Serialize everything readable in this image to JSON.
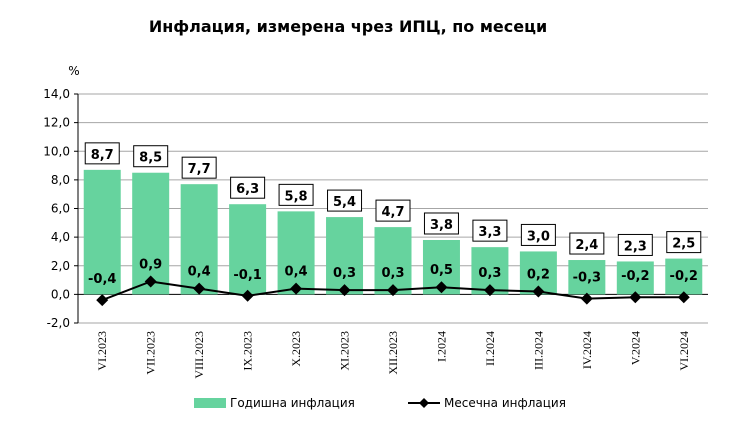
{
  "chart_data": {
    "type": "bar+line",
    "title": "Инфлация, измерена чрез ИПЦ, по месеци",
    "ylabel": "%",
    "ylim": [
      -2,
      14
    ],
    "yticks": [
      "-2,0",
      "0,0",
      "2,0",
      "4,0",
      "6,0",
      "8,0",
      "10,0",
      "12,0",
      "14,0"
    ],
    "categories": [
      "VI.2023",
      "VII.2023",
      "VIII.2023",
      "IX.2023",
      "X.2023",
      "XI.2023",
      "XII.2023",
      "I.2024",
      "II.2024",
      "III.2024",
      "IV.2024",
      "V.2024",
      "VI.2024"
    ],
    "series": [
      {
        "name": "Годишна инфлация",
        "type": "bar",
        "color": "#66d39e",
        "values": [
          8.7,
          8.5,
          7.7,
          6.3,
          5.8,
          5.4,
          4.7,
          3.8,
          3.3,
          3.0,
          2.4,
          2.3,
          2.5
        ],
        "labels": [
          "8,7",
          "8,5",
          "7,7",
          "6,3",
          "5,8",
          "5,4",
          "4,7",
          "3,8",
          "3,3",
          "3,0",
          "2,4",
          "2,3",
          "2,5"
        ]
      },
      {
        "name": "Месечна инфлация",
        "type": "line",
        "color": "#000000",
        "marker": "diamond",
        "values": [
          -0.4,
          0.9,
          0.4,
          -0.1,
          0.4,
          0.3,
          0.3,
          0.5,
          0.3,
          0.2,
          -0.3,
          -0.2,
          -0.2
        ],
        "labels": [
          "-0,4",
          "0,9",
          "0,4",
          "-0,1",
          "0,4",
          "0,3",
          "0,3",
          "0,5",
          "0,3",
          "0,2",
          "-0,3",
          "-0,2",
          "-0,2"
        ]
      }
    ],
    "grid": true,
    "legend": "bottom"
  }
}
